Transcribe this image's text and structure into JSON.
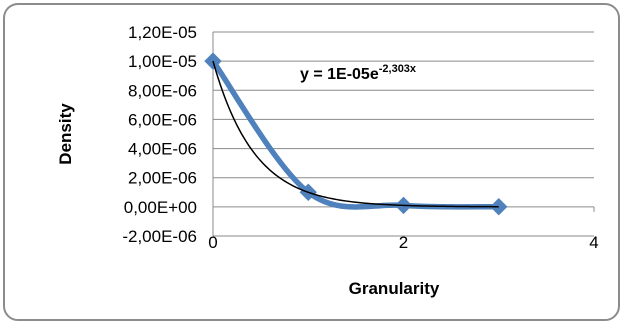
{
  "chart_data": {
    "type": "line",
    "title": "",
    "xlabel": "Granularity",
    "ylabel": "Density",
    "xlim": [
      0,
      4
    ],
    "ylim": [
      -2e-06,
      1.2e-05
    ],
    "x_ticks": [
      {
        "value": 0,
        "label": "0"
      },
      {
        "value": 2,
        "label": "2"
      },
      {
        "value": 4,
        "label": "4"
      }
    ],
    "y_ticks": [
      {
        "value": 1.2e-05,
        "label": "1,20E-05"
      },
      {
        "value": 1e-05,
        "label": "1,00E-05"
      },
      {
        "value": 8e-06,
        "label": "8,00E-06"
      },
      {
        "value": 6e-06,
        "label": "6,00E-06"
      },
      {
        "value": 4e-06,
        "label": "4,00E-06"
      },
      {
        "value": 2e-06,
        "label": "2,00E-06"
      },
      {
        "value": 0,
        "label": "0,00E+00"
      },
      {
        "value": -2e-06,
        "label": "-2,00E-06"
      }
    ],
    "grid": {
      "horizontal": true,
      "vertical": false
    },
    "series": [
      {
        "x": [
          0,
          1,
          2,
          3
        ],
        "y": [
          1e-05,
          1e-06,
          1e-07,
          1e-08
        ],
        "color": "#4F81BD",
        "marker": "diamond",
        "smooth": true
      }
    ],
    "trendline": {
      "kind": "exponential",
      "a": 1e-05,
      "b": -2.303,
      "color": "#000000",
      "equation": {
        "base": "y = 1E-05e",
        "exponent": "-2,303x"
      }
    },
    "legend": "none"
  }
}
